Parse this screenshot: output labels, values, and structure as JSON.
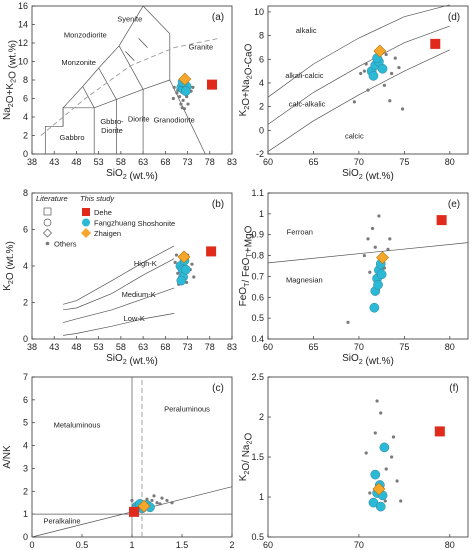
{
  "legend": {
    "header_literature": "Literature",
    "header_this_study": "This study",
    "entries": [
      "Dehe",
      "Fangzhuang",
      "Zhaigen",
      "Others"
    ]
  },
  "colors": {
    "dehe": "#e02a1c",
    "fangzhuang": "#2bbad6",
    "zhaigen": "#f6a72a",
    "others": "#7a7a7a",
    "line": "#555555",
    "dashed": "#9a9a9a"
  },
  "chart_data": [
    {
      "panel": "(a)",
      "type": "scatter",
      "xlabel": "SiO2 (wt.%)",
      "ylabel": "Na2O+K2O (wt.%)",
      "xlim": [
        38,
        83
      ],
      "ylim": [
        0,
        16
      ],
      "xticks": [
        38,
        43,
        48,
        53,
        58,
        63,
        68,
        73,
        78,
        83
      ],
      "yticks": [
        0,
        2,
        4,
        6,
        8,
        10,
        12,
        14,
        16
      ],
      "field_labels": [
        "Syenite",
        "Monzodiorite",
        "Monzonite",
        "Granite",
        "Gabbro",
        "Gbbro-Diorite",
        "Diorite",
        "Granodiorite"
      ],
      "series": [
        {
          "name": "Dehe",
          "marker": "square",
          "points": [
            [
              78.5,
              7.5
            ]
          ]
        },
        {
          "name": "Fangzhuang",
          "marker": "circle",
          "points": [
            [
              71.6,
              7.2
            ],
            [
              72.0,
              7.0
            ],
            [
              72.4,
              7.5
            ],
            [
              72.8,
              7.3
            ],
            [
              71.9,
              7.8
            ],
            [
              72.6,
              6.8
            ]
          ]
        },
        {
          "name": "Zhaigen",
          "marker": "diamond",
          "points": [
            [
              72.4,
              8.1
            ]
          ]
        },
        {
          "name": "Others",
          "marker": "dot",
          "points": [
            [
              70.0,
              7.2
            ],
            [
              70.8,
              6.9
            ],
            [
              71.2,
              6.2
            ],
            [
              71.5,
              5.4
            ],
            [
              72.0,
              5.8
            ],
            [
              72.8,
              6.2
            ],
            [
              73.3,
              7.5
            ],
            [
              73.8,
              6.8
            ],
            [
              73.1,
              5.4
            ],
            [
              70.6,
              6.6
            ],
            [
              72.3,
              4.9
            ],
            [
              74.2,
              7.2
            ],
            [
              71.8,
              5.0
            ],
            [
              69.8,
              6.0
            ]
          ]
        }
      ]
    },
    {
      "panel": "(b)",
      "type": "scatter",
      "xlabel": "SiO2 (wt.%)",
      "ylabel": "K2O (wt.%)",
      "xlim": [
        38,
        83
      ],
      "ylim": [
        0,
        8
      ],
      "xticks": [
        38,
        43,
        48,
        53,
        58,
        63,
        68,
        73,
        78,
        83
      ],
      "yticks": [
        0,
        2,
        4,
        6,
        8
      ],
      "field_labels": [
        "Shoshonite",
        "High-K",
        "Medium-K",
        "Low-K"
      ],
      "series": [
        {
          "name": "Dehe",
          "marker": "square",
          "points": [
            [
              78.3,
              4.8
            ]
          ]
        },
        {
          "name": "Fangzhuang",
          "marker": "circle",
          "points": [
            [
              71.4,
              4.0
            ],
            [
              71.9,
              3.8
            ],
            [
              72.3,
              4.3
            ],
            [
              72.0,
              3.4
            ],
            [
              72.6,
              3.8
            ],
            [
              71.6,
              3.2
            ]
          ]
        },
        {
          "name": "Zhaigen",
          "marker": "diamond",
          "points": [
            [
              72.2,
              4.5
            ]
          ]
        },
        {
          "name": "Others",
          "marker": "dot",
          "points": [
            [
              70.2,
              4.2
            ],
            [
              70.8,
              3.6
            ],
            [
              71.0,
              3.0
            ],
            [
              73.0,
              4.6
            ],
            [
              73.6,
              3.8
            ],
            [
              74.0,
              4.1
            ],
            [
              72.8,
              3.1
            ],
            [
              70.5,
              4.6
            ],
            [
              74.4,
              3.4
            ]
          ]
        }
      ]
    },
    {
      "panel": "(c)",
      "type": "scatter",
      "xlabel": "A/CNK",
      "ylabel": "A/NK",
      "xlim": [
        0,
        2
      ],
      "ylim": [
        0,
        7
      ],
      "xticks": [
        0,
        0.5,
        1,
        1.5,
        2
      ],
      "yticks": [
        0,
        1,
        2,
        3,
        4,
        5,
        6,
        7
      ],
      "field_labels": [
        "Metaluminous",
        "Peraluminous",
        "Peralkaline"
      ],
      "series": [
        {
          "name": "Dehe",
          "marker": "square",
          "points": [
            [
              1.02,
              1.1
            ]
          ]
        },
        {
          "name": "Fangzhuang",
          "marker": "circle",
          "points": [
            [
              1.05,
              1.35
            ],
            [
              1.1,
              1.25
            ],
            [
              1.15,
              1.4
            ],
            [
              1.03,
              1.2
            ],
            [
              1.18,
              1.3
            ],
            [
              1.08,
              1.45
            ]
          ]
        },
        {
          "name": "Zhaigen",
          "marker": "diamond",
          "points": [
            [
              1.12,
              1.35
            ]
          ]
        },
        {
          "name": "Others",
          "marker": "dot",
          "points": [
            [
              1.2,
              1.6
            ],
            [
              1.25,
              1.5
            ],
            [
              1.3,
              1.7
            ],
            [
              1.35,
              1.6
            ],
            [
              1.28,
              1.45
            ],
            [
              1.0,
              1.6
            ],
            [
              1.4,
              1.5
            ],
            [
              1.22,
              1.8
            ],
            [
              1.15,
              1.65
            ]
          ]
        }
      ]
    },
    {
      "panel": "(d)",
      "type": "scatter",
      "xlabel": "SiO2 (wt.%)",
      "ylabel": "K2O+Na2O-CaO",
      "xlim": [
        60,
        82
      ],
      "ylim": [
        -2,
        10.5
      ],
      "xticks": [
        60,
        65,
        70,
        75,
        80
      ],
      "yticks": [
        -2,
        0,
        2,
        4,
        6,
        8,
        10
      ],
      "field_labels": [
        "alkalic",
        "alkali-calcic",
        "calc-alkalic",
        "calcic"
      ],
      "series": [
        {
          "name": "Dehe",
          "marker": "square",
          "points": [
            [
              78.4,
              7.3
            ]
          ]
        },
        {
          "name": "Fangzhuang",
          "marker": "circle",
          "points": [
            [
              71.4,
              5.0
            ],
            [
              71.8,
              5.5
            ],
            [
              72.2,
              5.8
            ],
            [
              72.6,
              5.2
            ],
            [
              71.6,
              4.6
            ],
            [
              72.0,
              6.1
            ]
          ]
        },
        {
          "name": "Zhaigen",
          "marker": "diamond",
          "points": [
            [
              72.3,
              6.7
            ]
          ]
        },
        {
          "name": "Others",
          "marker": "dot",
          "points": [
            [
              70.2,
              4.8
            ],
            [
              70.8,
              5.6
            ],
            [
              73.0,
              6.4
            ],
            [
              73.6,
              4.8
            ],
            [
              74.4,
              5.3
            ],
            [
              71.0,
              3.4
            ],
            [
              72.8,
              3.8
            ],
            [
              74.8,
              1.8
            ],
            [
              69.5,
              2.4
            ],
            [
              73.4,
              2.5
            ],
            [
              70.6,
              5.0
            ],
            [
              74.0,
              6.1
            ]
          ]
        }
      ]
    },
    {
      "panel": "(e)",
      "type": "scatter",
      "xlabel": "SiO2 (wt.%)",
      "ylabel": "FeOT/ FeOT+MgO",
      "xlim": [
        60,
        82
      ],
      "ylim": [
        0.4,
        1.1
      ],
      "xticks": [
        60,
        65,
        70,
        75,
        80
      ],
      "yticks": [
        0.4,
        0.5,
        0.6,
        0.7,
        0.8,
        0.9,
        1.0,
        1.1
      ],
      "field_labels": [
        "Ferroan",
        "Magnesian"
      ],
      "series": [
        {
          "name": "Dehe",
          "marker": "square",
          "points": [
            [
              79.1,
              0.97
            ]
          ]
        },
        {
          "name": "Fangzhuang",
          "marker": "circle",
          "points": [
            [
              71.8,
              0.63
            ],
            [
              71.7,
              0.55
            ],
            [
              72.0,
              0.69
            ],
            [
              72.2,
              0.73
            ],
            [
              72.4,
              0.76
            ],
            [
              72.1,
              0.66
            ],
            [
              72.5,
              0.71
            ]
          ]
        },
        {
          "name": "Zhaigen",
          "marker": "diamond",
          "points": [
            [
              72.6,
              0.79
            ]
          ]
        },
        {
          "name": "Others",
          "marker": "dot",
          "points": [
            [
              71.5,
              0.93
            ],
            [
              72.2,
              0.99
            ],
            [
              71.0,
              0.88
            ],
            [
              70.6,
              0.8
            ],
            [
              73.2,
              0.83
            ],
            [
              73.4,
              0.88
            ],
            [
              71.2,
              0.72
            ],
            [
              68.8,
              0.48
            ],
            [
              72.8,
              0.74
            ],
            [
              71.8,
              0.84
            ]
          ]
        }
      ]
    },
    {
      "panel": "(f)",
      "type": "scatter",
      "xlabel": "SiO2 (wt.%)",
      "ylabel": "K2O/ Na2O",
      "xlim": [
        60,
        82
      ],
      "ylim": [
        0.5,
        2.5
      ],
      "xticks": [
        60,
        70,
        80
      ],
      "yticks": [
        0.5,
        1.0,
        1.5,
        2.0,
        2.5
      ],
      "field_labels": [],
      "series": [
        {
          "name": "Dehe",
          "marker": "square",
          "points": [
            [
              78.9,
              1.82
            ]
          ]
        },
        {
          "name": "Fangzhuang",
          "marker": "circle",
          "points": [
            [
              72.0,
              1.05
            ],
            [
              71.6,
              0.93
            ],
            [
              72.3,
              1.15
            ],
            [
              72.6,
              1.02
            ],
            [
              71.8,
              1.28
            ],
            [
              72.8,
              1.62
            ],
            [
              72.4,
              0.88
            ]
          ]
        },
        {
          "name": "Zhaigen",
          "marker": "diamond",
          "points": [
            [
              72.2,
              1.1
            ]
          ]
        },
        {
          "name": "Others",
          "marker": "dot",
          "points": [
            [
              72.0,
              2.2
            ],
            [
              72.4,
              2.05
            ],
            [
              71.8,
              1.8
            ],
            [
              70.8,
              1.55
            ],
            [
              73.6,
              1.5
            ],
            [
              73.0,
              1.35
            ],
            [
              74.2,
              1.2
            ],
            [
              74.6,
              0.95
            ],
            [
              71.2,
              1.05
            ],
            [
              73.8,
              1.75
            ],
            [
              72.9,
              0.95
            ]
          ]
        }
      ]
    }
  ]
}
